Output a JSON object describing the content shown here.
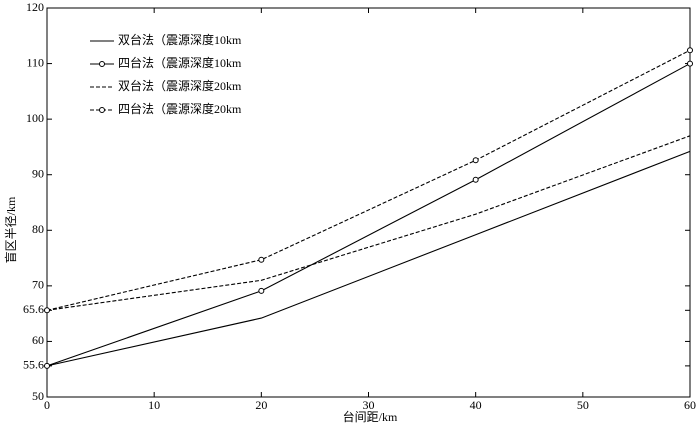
{
  "chart_data": {
    "type": "line",
    "x_label": "台间距/km",
    "y_label": "盲区半径/km",
    "x": [
      0,
      20,
      40,
      60
    ],
    "series": [
      {
        "name": "双台法（震源深度10km",
        "color": "#000000",
        "line_style": "solid",
        "marker": false,
        "values": [
          55.6,
          64.2,
          79.2,
          94.2
        ]
      },
      {
        "name": "四台法（震源深度10km",
        "color": "#000000",
        "line_style": "solid",
        "marker": true,
        "values": [
          55.6,
          69.1,
          89.1,
          110
        ]
      },
      {
        "name": "双台法（震源深度20km",
        "color": "#000000",
        "line_style": "dashed",
        "marker": false,
        "values": [
          65.6,
          71,
          82.9,
          97
        ]
      },
      {
        "name": "四台法（震源深度20km",
        "color": "#000000",
        "line_style": "dashed",
        "marker": true,
        "values": [
          65.6,
          74.7,
          92.6,
          112.4
        ]
      }
    ],
    "xlim": [
      0,
      60
    ],
    "xticks": [
      0,
      10,
      20,
      30,
      40,
      50,
      60
    ],
    "ylim": [
      50,
      120
    ],
    "yticks": [
      50,
      55.6,
      60,
      65.6,
      70,
      80,
      90,
      100,
      110,
      120
    ],
    "legend": "upper-left"
  }
}
